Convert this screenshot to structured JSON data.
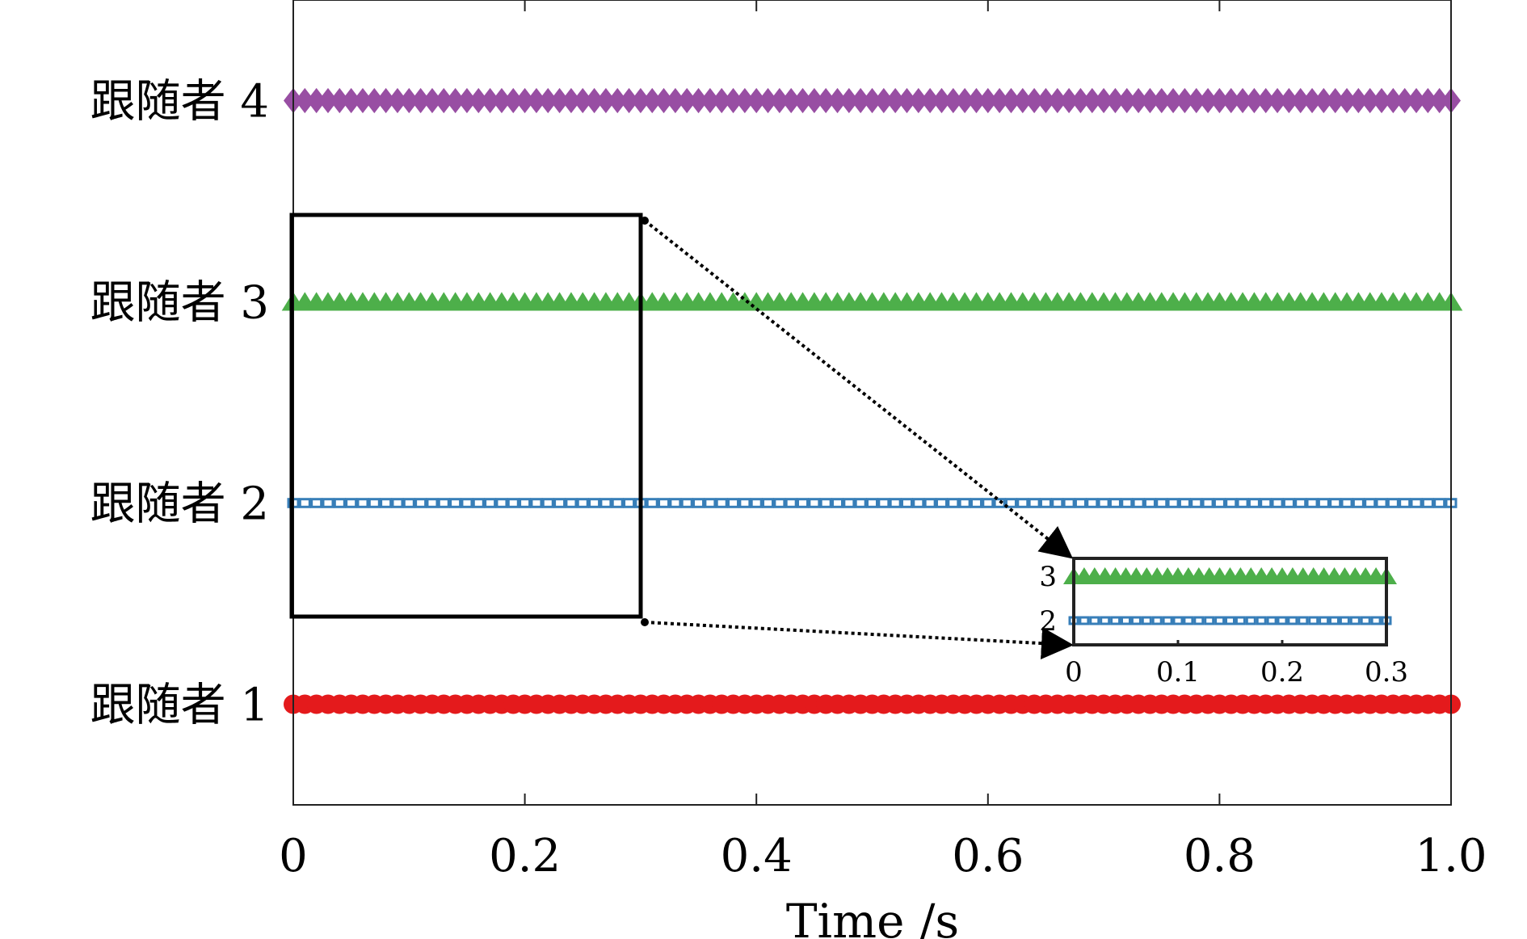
{
  "chart_data": {
    "type": "scatter",
    "title": "",
    "xlabel": "Time /s",
    "ylabel": "",
    "xlim": [
      0,
      1
    ],
    "ylim": [
      0.5,
      4.5
    ],
    "x_ticks": [
      "0",
      "0.2",
      "0.4",
      "0.6",
      "0.8",
      "1.0"
    ],
    "x_tick_values": [
      0,
      0.2,
      0.4,
      0.6,
      0.8,
      1.0
    ],
    "y_ticks": [
      "跟随者 1",
      "跟随者 2",
      "跟随者 3",
      "跟随者 4"
    ],
    "y_tick_values": [
      1,
      2,
      3,
      4
    ],
    "x_samples": {
      "start": 0,
      "end": 1,
      "step": 0.01
    },
    "series": [
      {
        "name": "跟随者 1",
        "y": 1,
        "marker": "circle",
        "color": "#e41a1c"
      },
      {
        "name": "跟随者 2",
        "y": 2,
        "marker": "square",
        "color": "#377eb8"
      },
      {
        "name": "跟随者 3",
        "y": 3,
        "marker": "triangle",
        "color": "#4daf4a"
      },
      {
        "name": "跟随者 4",
        "y": 4,
        "marker": "diamond",
        "color": "#984ea3"
      }
    ],
    "zoom_region": {
      "x": [
        0,
        0.3
      ],
      "y": [
        1.45,
        3.45
      ]
    },
    "inset": {
      "xlim": [
        0,
        0.3
      ],
      "x_ticks": [
        "0",
        "0.1",
        "0.2",
        "0.3"
      ],
      "x_tick_values": [
        0,
        0.1,
        0.2,
        0.3
      ],
      "y_ticks": [
        "2",
        "3"
      ],
      "y_tick_values": [
        2,
        3
      ]
    },
    "grid": false,
    "legend": "none"
  }
}
